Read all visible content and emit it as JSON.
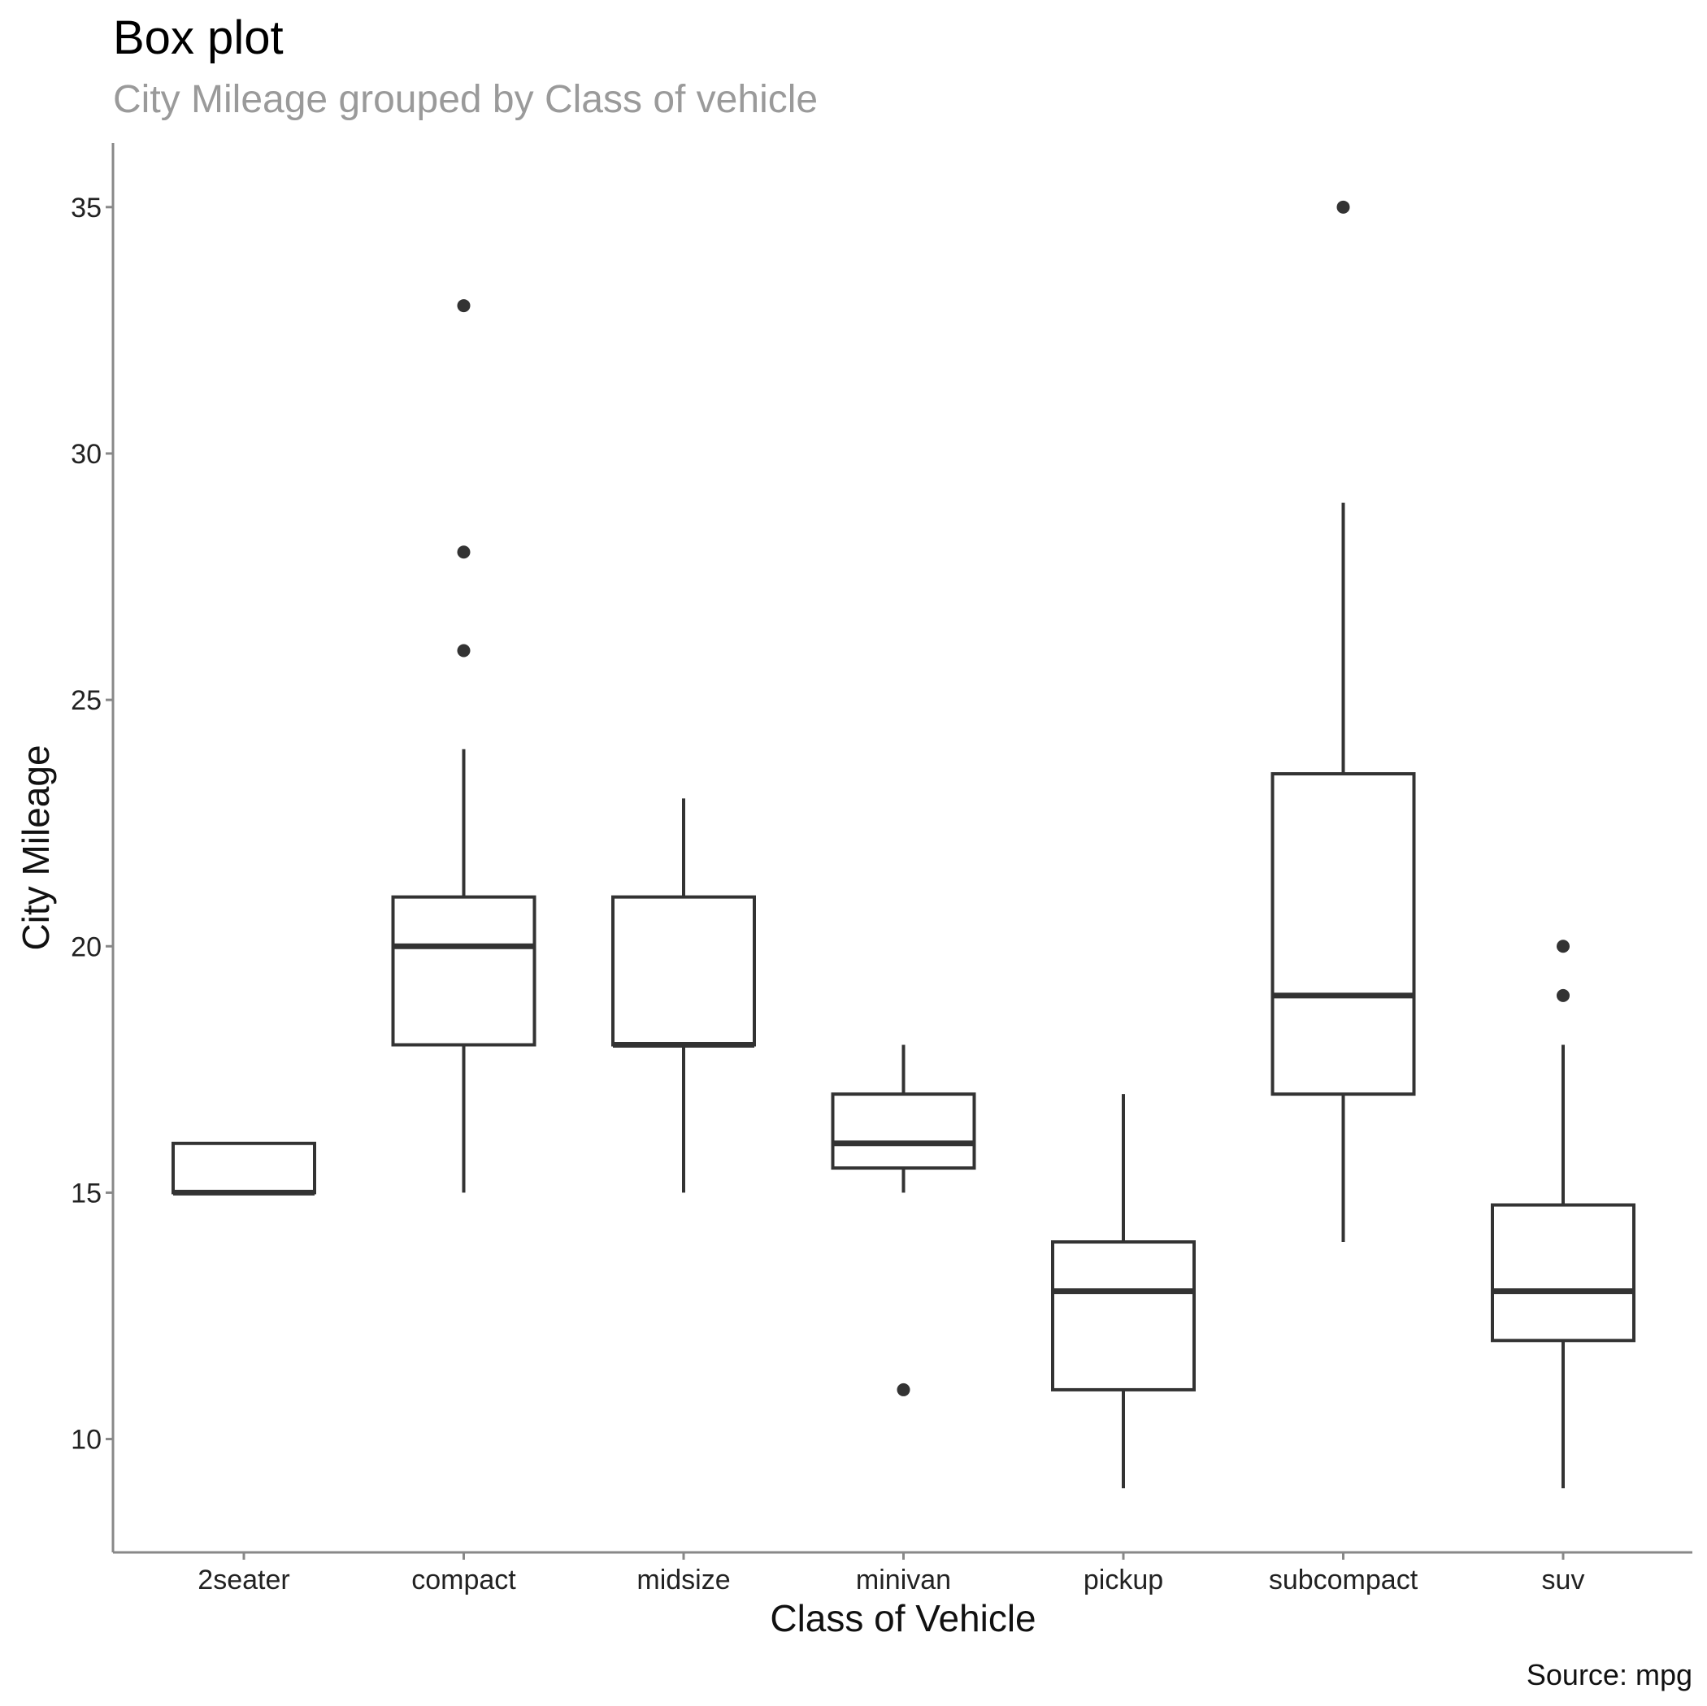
{
  "chart_data": {
    "type": "box",
    "title": "Box plot",
    "subtitle": "City Mileage grouped by Class of vehicle",
    "xlabel": "Class of Vehicle",
    "ylabel": "City Mileage",
    "caption": "Source: mpg",
    "ylim": [
      7.7,
      36.3
    ],
    "yticks": [
      10,
      15,
      20,
      25,
      30,
      35
    ],
    "grid": false,
    "categories": [
      "2seater",
      "compact",
      "midsize",
      "minivan",
      "pickup",
      "subcompact",
      "suv"
    ],
    "boxes": [
      {
        "category": "2seater",
        "lower_whisker": 15,
        "q1": 15,
        "median": 15,
        "q3": 16,
        "upper_whisker": 16,
        "outliers": []
      },
      {
        "category": "compact",
        "lower_whisker": 15,
        "q1": 18,
        "median": 20,
        "q3": 21,
        "upper_whisker": 24,
        "outliers": [
          26,
          28,
          33
        ]
      },
      {
        "category": "midsize",
        "lower_whisker": 15,
        "q1": 18,
        "median": 18,
        "q3": 21,
        "upper_whisker": 23,
        "outliers": []
      },
      {
        "category": "minivan",
        "lower_whisker": 15,
        "q1": 15.5,
        "median": 16,
        "q3": 17,
        "upper_whisker": 18,
        "outliers": [
          11
        ]
      },
      {
        "category": "pickup",
        "lower_whisker": 9,
        "q1": 11,
        "median": 13,
        "q3": 14,
        "upper_whisker": 17,
        "outliers": []
      },
      {
        "category": "subcompact",
        "lower_whisker": 14,
        "q1": 17,
        "median": 19,
        "q3": 23.5,
        "upper_whisker": 29,
        "outliers": [
          35
        ]
      },
      {
        "category": "suv",
        "lower_whisker": 9,
        "q1": 12,
        "median": 13,
        "q3": 14.75,
        "upper_whisker": 18,
        "outliers": [
          19,
          20
        ]
      }
    ],
    "colors": {
      "box_line": "#333333",
      "outlier": "#333333",
      "axis": "#888888",
      "title": "#000000",
      "subtitle": "#9a9a9a"
    }
  }
}
